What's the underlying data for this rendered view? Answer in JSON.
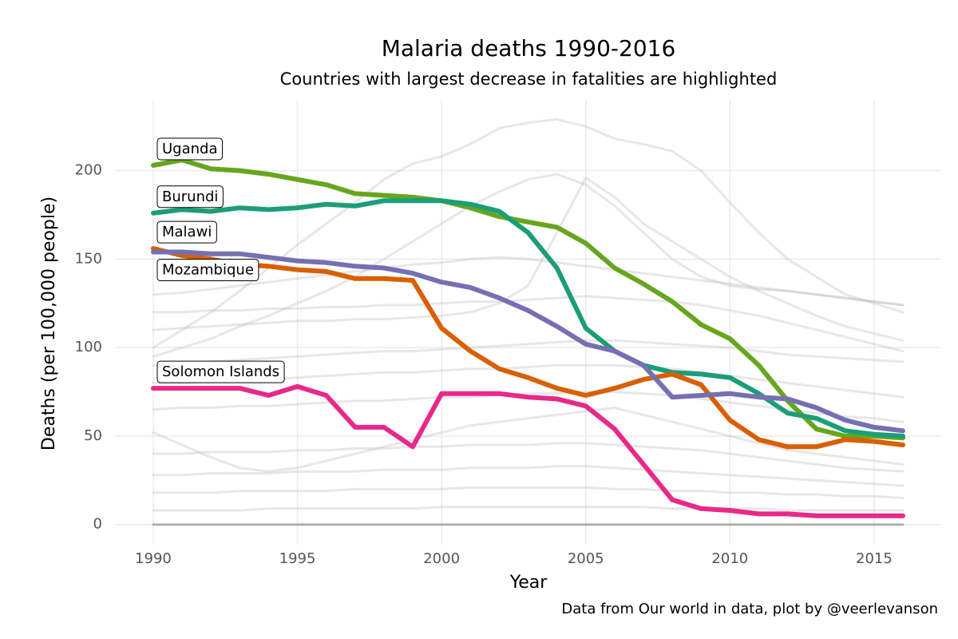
{
  "chart_data": {
    "type": "line",
    "title": "Malaria deaths 1990-2016",
    "subtitle": "Countries with largest decrease in fatalities are highlighted",
    "x_label": "Year",
    "y_label": "Deaths (per 100,000 people)",
    "caption": "Data from Our world in data, plot by @veerlevanson",
    "x": [
      1990,
      1991,
      1992,
      1993,
      1994,
      1995,
      1996,
      1997,
      1998,
      1999,
      2000,
      2001,
      2002,
      2003,
      2004,
      2005,
      2006,
      2007,
      2008,
      2009,
      2010,
      2011,
      2012,
      2013,
      2014,
      2015,
      2016
    ],
    "xlim": [
      1988.7,
      2017.3
    ],
    "xticks": [
      1990,
      1995,
      2000,
      2005,
      2010,
      2015
    ],
    "ylim": [
      -11.4,
      240
    ],
    "yticks": [
      0,
      50,
      100,
      150,
      200
    ],
    "grid": true,
    "series": [
      {
        "color": "#bbbbbb",
        "values": [
          100,
          110,
          120,
          132,
          145,
          158,
          170,
          182,
          195,
          204,
          208,
          215,
          224,
          227,
          229,
          225,
          218,
          215,
          211,
          200,
          182,
          165,
          150,
          140,
          130,
          125,
          120
        ]
      },
      {
        "color": "#bbbbbb",
        "values": [
          95,
          100,
          105,
          112,
          118,
          125,
          132,
          140,
          150,
          160,
          170,
          180,
          188,
          195,
          198,
          192,
          180,
          165,
          150,
          140,
          135,
          133,
          132,
          130,
          128,
          126,
          124
        ]
      },
      {
        "color": "#bbbbbb",
        "values": [
          130,
          131,
          133,
          135,
          137,
          139,
          141,
          143,
          145,
          147,
          148,
          150,
          151,
          150,
          148,
          146,
          144,
          142,
          140,
          138,
          136,
          134,
          132,
          130,
          128,
          126,
          124
        ]
      },
      {
        "color": "#bbbbbb",
        "values": [
          120,
          120,
          121,
          121,
          122,
          122,
          123,
          123,
          124,
          124,
          125,
          126,
          126,
          127,
          128,
          129,
          128,
          127,
          126,
          124,
          121,
          118,
          114,
          110,
          106,
          102,
          98
        ]
      },
      {
        "color": "#bbbbbb",
        "values": [
          110,
          111,
          112,
          113,
          114,
          115,
          115,
          116,
          116,
          117,
          118,
          120,
          125,
          135,
          165,
          196,
          185,
          170,
          160,
          150,
          140,
          132,
          125,
          118,
          112,
          108,
          104
        ]
      },
      {
        "color": "#bbbbbb",
        "values": [
          90,
          91,
          92,
          93,
          94,
          95,
          96,
          97,
          98,
          98,
          99,
          100,
          101,
          102,
          103,
          104,
          104,
          103,
          102,
          101,
          100,
          98,
          96,
          95,
          94,
          93,
          92
        ]
      },
      {
        "color": "#bbbbbb",
        "values": [
          80,
          80,
          81,
          81,
          82,
          83,
          84,
          85,
          86,
          86,
          87,
          88,
          88,
          89,
          90,
          90,
          90,
          89,
          88,
          86,
          84,
          82,
          80,
          78,
          76,
          74,
          72
        ]
      },
      {
        "color": "#bbbbbb",
        "values": [
          65,
          66,
          66,
          67,
          67,
          68,
          69,
          70,
          70,
          71,
          72,
          72,
          73,
          74,
          74,
          75,
          75,
          74,
          73,
          71,
          69,
          67,
          65,
          63,
          61,
          60,
          58
        ]
      },
      {
        "color": "#bbbbbb",
        "values": [
          52,
          45,
          38,
          32,
          30,
          32,
          36,
          40,
          44,
          48,
          52,
          56,
          58,
          60,
          62,
          64,
          66,
          62,
          58,
          54,
          50,
          46,
          42,
          40,
          38,
          36,
          34
        ]
      },
      {
        "color": "#bbbbbb",
        "values": [
          40,
          40,
          41,
          41,
          41,
          42,
          42,
          43,
          43,
          44,
          44,
          45,
          45,
          45,
          46,
          46,
          45,
          44,
          43,
          42,
          40,
          38,
          36,
          34,
          32,
          31,
          30
        ]
      },
      {
        "color": "#bbbbbb",
        "values": [
          28,
          28,
          29,
          29,
          29,
          30,
          30,
          30,
          31,
          31,
          31,
          32,
          32,
          32,
          33,
          33,
          32,
          31,
          30,
          29,
          28,
          27,
          26,
          25,
          24,
          23,
          22
        ]
      },
      {
        "color": "#bbbbbb",
        "values": [
          18,
          18,
          18,
          19,
          19,
          19,
          19,
          20,
          20,
          20,
          20,
          21,
          21,
          21,
          21,
          21,
          20,
          20,
          19,
          19,
          18,
          18,
          17,
          17,
          16,
          16,
          15
        ]
      },
      {
        "color": "#bbbbbb",
        "values": [
          8,
          8,
          8,
          8,
          9,
          9,
          9,
          9,
          9,
          9,
          10,
          10,
          10,
          10,
          10,
          10,
          10,
          10,
          9,
          9,
          9,
          9,
          8,
          8,
          8,
          8,
          8
        ]
      },
      {
        "color": "#333333",
        "values": [
          0,
          0,
          0,
          0,
          0,
          0,
          0,
          0,
          0,
          0,
          0,
          0,
          0,
          0,
          0,
          0,
          0,
          0,
          0,
          0,
          0,
          0,
          0,
          0,
          0,
          0,
          0
        ]
      },
      {
        "name": "Uganda",
        "color": "#66a61e",
        "values": [
          203,
          206,
          201,
          200,
          198,
          195,
          192,
          187,
          186,
          185,
          183,
          179,
          174,
          171,
          168,
          159,
          145,
          136,
          126,
          113,
          105,
          90,
          70,
          54,
          50,
          50,
          49
        ]
      },
      {
        "name": "Burundi",
        "color": "#1b9e77",
        "values": [
          176,
          178,
          177,
          179,
          178,
          179,
          181,
          180,
          183,
          183,
          183,
          181,
          177,
          165,
          145,
          111,
          98,
          90,
          86,
          85,
          83,
          74,
          63,
          60,
          53,
          51,
          50
        ]
      },
      {
        "name": "Malawi",
        "color": "#d95f02",
        "values": [
          156,
          152,
          150,
          147,
          146,
          144,
          143,
          139,
          139,
          138,
          111,
          98,
          88,
          83,
          77,
          73,
          77,
          82,
          85,
          79,
          59,
          48,
          44,
          44,
          48,
          47,
          45
        ]
      },
      {
        "name": "Mozambique",
        "color": "#7570b3",
        "values": [
          154,
          154,
          153,
          153,
          151,
          149,
          148,
          146,
          145,
          142,
          137,
          134,
          128,
          121,
          112,
          102,
          98,
          90,
          72,
          73,
          74,
          72,
          71,
          66,
          59,
          55,
          53
        ]
      },
      {
        "name": "Solomon Islands",
        "color": "#e7298a",
        "values": [
          77,
          77,
          77,
          77,
          73,
          78,
          73,
          55,
          55,
          44,
          74,
          74,
          74,
          72,
          71,
          67,
          54,
          34,
          14,
          9,
          8,
          6,
          6,
          5,
          5,
          5,
          5
        ]
      }
    ]
  }
}
